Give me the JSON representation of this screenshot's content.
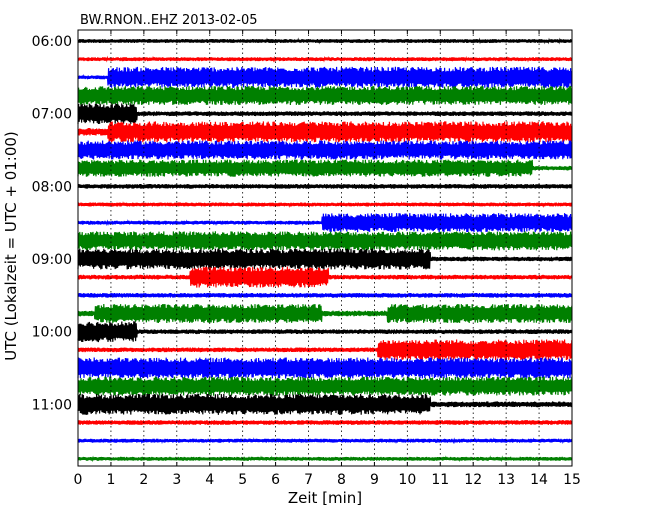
{
  "chart_data": {
    "type": "line",
    "title": "BW.RNON..EHZ 2013-02-05",
    "xlabel": "Zeit  [min]",
    "ylabel": "UTC (Lokalzeit = UTC + 01:00)",
    "xlim": [
      0,
      15
    ],
    "x_ticks": [
      "0",
      "1",
      "2",
      "3",
      "4",
      "5",
      "6",
      "7",
      "8",
      "9",
      "10",
      "11",
      "12",
      "13",
      "14",
      "15"
    ],
    "y_ticks": [
      "06:00",
      "07:00",
      "08:00",
      "09:00",
      "10:00",
      "11:00"
    ],
    "grid": "dotted vertical lines at each minute",
    "line_interval_min": 15,
    "color_cycle": [
      "#000000",
      "#ff0000",
      "#0000ff",
      "#008000"
    ],
    "series": [
      {
        "start": "06:00",
        "segments": [
          [
            0,
            15,
            0.1
          ]
        ]
      },
      {
        "start": "06:15",
        "segments": [
          [
            0,
            15,
            0.1
          ]
        ]
      },
      {
        "start": "06:30",
        "segments": [
          [
            0,
            0.9,
            0.1
          ],
          [
            0.9,
            15,
            0.55
          ]
        ]
      },
      {
        "start": "06:45",
        "segments": [
          [
            0,
            15,
            0.5
          ]
        ]
      },
      {
        "start": "07:00",
        "segments": [
          [
            0,
            1.8,
            0.55
          ],
          [
            1.8,
            15,
            0.12
          ]
        ]
      },
      {
        "start": "07:15",
        "segments": [
          [
            0,
            0.9,
            0.2
          ],
          [
            0.9,
            15,
            0.55
          ]
        ]
      },
      {
        "start": "07:30",
        "segments": [
          [
            0,
            15,
            0.5
          ]
        ]
      },
      {
        "start": "07:45",
        "segments": [
          [
            0,
            13.8,
            0.45
          ],
          [
            13.8,
            15,
            0.12
          ]
        ]
      },
      {
        "start": "08:00",
        "segments": [
          [
            0,
            15,
            0.12
          ]
        ]
      },
      {
        "start": "08:15",
        "segments": [
          [
            0,
            15,
            0.1
          ]
        ]
      },
      {
        "start": "08:30",
        "segments": [
          [
            0,
            7.4,
            0.1
          ],
          [
            7.4,
            15,
            0.5
          ]
        ]
      },
      {
        "start": "08:45",
        "segments": [
          [
            0,
            15,
            0.5
          ]
        ]
      },
      {
        "start": "09:00",
        "segments": [
          [
            0,
            10.7,
            0.55
          ],
          [
            10.7,
            15,
            0.12
          ]
        ]
      },
      {
        "start": "09:15",
        "segments": [
          [
            0,
            3.4,
            0.12
          ],
          [
            3.4,
            7.6,
            0.55
          ],
          [
            7.6,
            15,
            0.12
          ]
        ]
      },
      {
        "start": "09:30",
        "segments": [
          [
            0,
            15,
            0.12
          ]
        ]
      },
      {
        "start": "09:45",
        "segments": [
          [
            0,
            0.5,
            0.15
          ],
          [
            0.5,
            7.4,
            0.5
          ],
          [
            7.4,
            9.4,
            0.15
          ],
          [
            9.4,
            15,
            0.5
          ]
        ]
      },
      {
        "start": "10:00",
        "segments": [
          [
            0,
            1.8,
            0.55
          ],
          [
            1.8,
            15,
            0.12
          ]
        ]
      },
      {
        "start": "10:15",
        "segments": [
          [
            0,
            9.1,
            0.12
          ],
          [
            9.1,
            15,
            0.55
          ]
        ]
      },
      {
        "start": "10:30",
        "segments": [
          [
            0,
            15,
            0.55
          ]
        ]
      },
      {
        "start": "10:45",
        "segments": [
          [
            0,
            15,
            0.5
          ]
        ]
      },
      {
        "start": "11:00",
        "segments": [
          [
            0,
            10.7,
            0.55
          ],
          [
            10.7,
            15,
            0.15
          ]
        ]
      },
      {
        "start": "11:15",
        "segments": [
          [
            0,
            15,
            0.12
          ]
        ]
      },
      {
        "start": "11:30",
        "segments": [
          [
            0,
            15,
            0.1
          ]
        ]
      },
      {
        "start": "11:45",
        "segments": [
          [
            0,
            15,
            0.1
          ]
        ]
      }
    ]
  }
}
